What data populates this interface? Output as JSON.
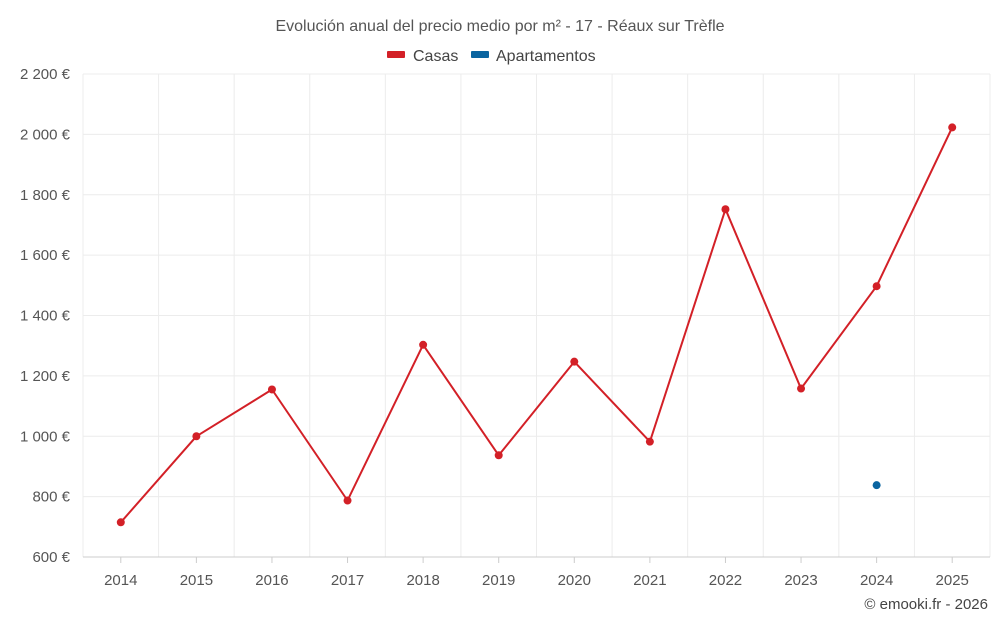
{
  "chart_data": {
    "type": "line",
    "title": "Evolución anual del precio medio por m² - 17 - Réaux sur Trèfle",
    "xlabel": "",
    "ylabel": "",
    "ylim": [
      600,
      2200
    ],
    "yticks": [
      600,
      800,
      1000,
      1200,
      1400,
      1600,
      1800,
      2000,
      2200
    ],
    "ytick_labels": [
      "600 €",
      "800 €",
      "1 000 €",
      "1 200 €",
      "1 400 €",
      "1 600 €",
      "1 800 €",
      "2 000 €",
      "2 200 €"
    ],
    "categories": [
      "2014",
      "2015",
      "2016",
      "2017",
      "2018",
      "2019",
      "2020",
      "2021",
      "2022",
      "2023",
      "2024",
      "2025"
    ],
    "grid": true,
    "legend_position": "top-center",
    "series": [
      {
        "name": "Casas",
        "color": "#d32027",
        "values": [
          715,
          1000,
          1155,
          787,
          1303,
          937,
          1247,
          982,
          1752,
          1158,
          1497,
          2023
        ]
      },
      {
        "name": "Apartamentos",
        "color": "#0a64a0",
        "values": [
          null,
          null,
          null,
          null,
          null,
          null,
          null,
          null,
          null,
          null,
          838,
          null
        ]
      }
    ],
    "credit": "© emooki.fr - 2026"
  }
}
